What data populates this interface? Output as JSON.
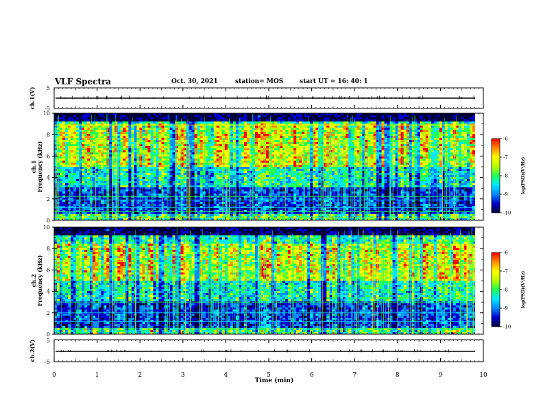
{
  "header": {
    "title": "VLF Spectra",
    "date": "Oct. 30, 2021",
    "station": "station= MOS",
    "start": "start  UT =    16: 40: 1"
  },
  "colors": {
    "colormap": [
      "#00003a",
      "#0000cc",
      "#0088ff",
      "#00e8ff",
      "#22ff55",
      "#b8ff00",
      "#ffff00",
      "#ff8800",
      "#ff0000"
    ],
    "red": "#ff0000"
  },
  "chart_data": [
    {
      "id": "ch1-waveform",
      "type": "line",
      "ylabel": "ch.1(V)",
      "ylim": [
        -5,
        5
      ],
      "y_ticklabels": [
        "5",
        "-5"
      ],
      "xlim": [
        0,
        10
      ]
    },
    {
      "id": "ch1-spectrogram",
      "type": "heatmap",
      "ylabel_line1": "ch.1",
      "ylabel_line2": "Frequency (kHz)",
      "ylim": [
        0,
        10
      ],
      "xlim": [
        0,
        10
      ],
      "y_ticklabels": [
        "0",
        "2",
        "4",
        "6",
        "8",
        "10"
      ],
      "intense_band_khz": [
        5.0,
        9.0
      ],
      "colorbar": {
        "ticklabels": [
          "-6",
          "-7",
          "-8",
          "-9",
          "-10"
        ],
        "range": [
          -10,
          -6
        ],
        "label": "log(PSD)(V²/Hz)"
      }
    },
    {
      "id": "ch2-spectrogram",
      "type": "heatmap",
      "ylabel_line1": "ch.2",
      "ylabel_line2": "Frequency (kHz)",
      "ylim": [
        0,
        10
      ],
      "xlim": [
        0,
        10
      ],
      "y_ticklabels": [
        "0",
        "2",
        "4",
        "6",
        "8",
        "10"
      ],
      "intense_band_khz": [
        5.0,
        8.5
      ],
      "colorbar": {
        "ticklabels": [
          "-6",
          "-7",
          "-8",
          "-9",
          "-10"
        ],
        "range": [
          -10,
          -6
        ],
        "label": "log(PSD)(V²/Hz)"
      }
    },
    {
      "id": "ch2-waveform",
      "type": "line",
      "ylabel": "ch.2(V)",
      "ylim": [
        -5,
        5
      ],
      "y_ticklabels": [
        "5",
        "-5"
      ],
      "xlim": [
        0,
        10
      ],
      "xlabel": "Time (min)",
      "x_ticklabels": [
        "0",
        "1",
        "2",
        "3",
        "4",
        "5",
        "6",
        "7",
        "8",
        "9",
        "10"
      ]
    }
  ]
}
